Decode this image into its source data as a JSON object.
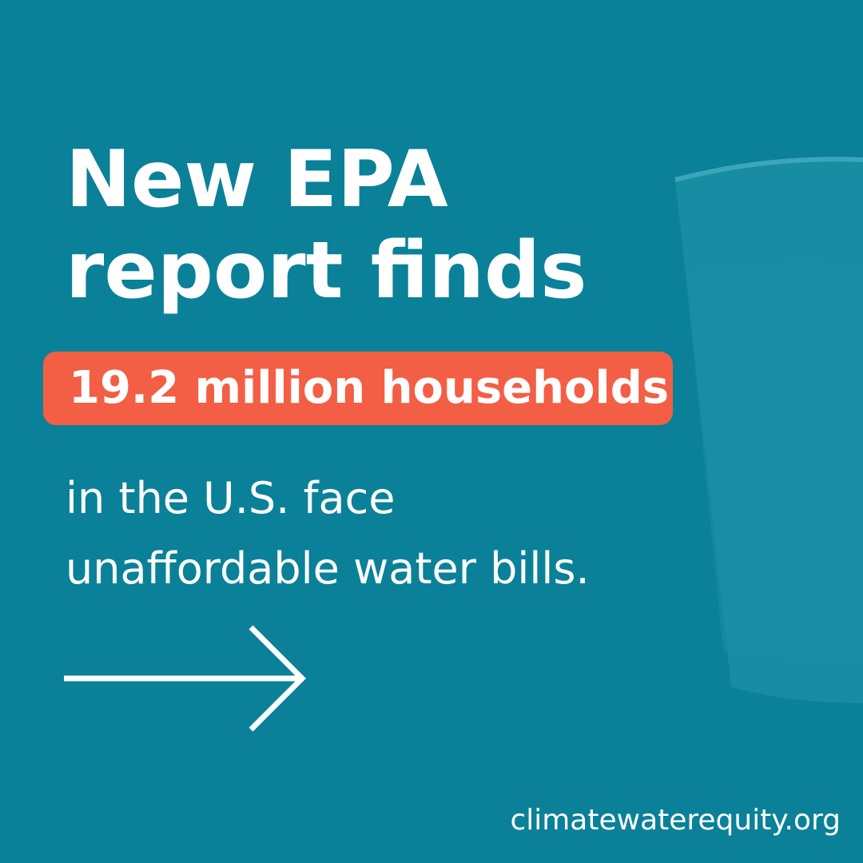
{
  "headline": [
    "New EPA",
    "report finds"
  ],
  "highlight": "19.2 million households",
  "subtext": [
    "in the U.S. face",
    "unaffordable water bills."
  ],
  "website": "climatewaterequity.org"
}
